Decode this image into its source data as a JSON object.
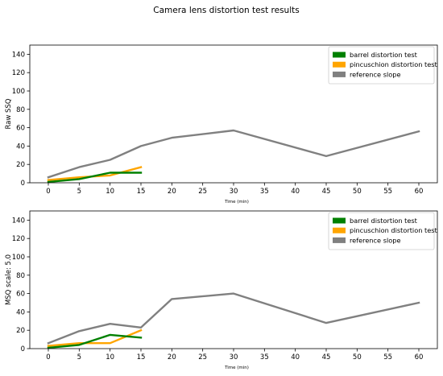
{
  "figure": {
    "title": "Camera lens distortion test results"
  },
  "chart_data": [
    {
      "type": "line",
      "ylabel": "Raw SSQ",
      "xlabel": "Time (min)",
      "xlim": [
        -3,
        63
      ],
      "ylim": [
        0,
        150
      ],
      "xticks": [
        0,
        5,
        10,
        15,
        20,
        25,
        30,
        35,
        40,
        45,
        50,
        55,
        60
      ],
      "yticks": [
        0,
        20,
        40,
        60,
        80,
        100,
        120,
        140
      ],
      "grid": false,
      "legend_position": "top-right",
      "series": [
        {
          "name": "barrel distortion test",
          "color": "#008000",
          "x": [
            0,
            5,
            10,
            15
          ],
          "y": [
            1,
            4,
            11,
            11
          ]
        },
        {
          "name": "pincuschion distortion test",
          "color": "#ffa500",
          "x": [
            0,
            5,
            10,
            15
          ],
          "y": [
            3,
            6,
            8,
            17
          ]
        },
        {
          "name": "reference slope",
          "color": "#808080",
          "x": [
            0,
            5,
            10,
            15,
            20,
            30,
            45,
            60
          ],
          "y": [
            6,
            17,
            25,
            40,
            49,
            57,
            29,
            56
          ]
        }
      ]
    },
    {
      "type": "line",
      "ylabel": "MSQ scale: 5.0",
      "xlabel": "Time (min)",
      "xlim": [
        -3,
        63
      ],
      "ylim": [
        0,
        150
      ],
      "xticks": [
        0,
        5,
        10,
        15,
        20,
        25,
        30,
        35,
        40,
        45,
        50,
        55,
        60
      ],
      "yticks": [
        0,
        20,
        40,
        60,
        80,
        100,
        120,
        140
      ],
      "grid": false,
      "legend_position": "top-right",
      "series": [
        {
          "name": "barrel distortion test",
          "color": "#008000",
          "x": [
            0,
            5,
            10,
            15
          ],
          "y": [
            1,
            4,
            15,
            12
          ]
        },
        {
          "name": "pincuschion distortion test",
          "color": "#ffa500",
          "x": [
            0,
            5,
            10,
            15
          ],
          "y": [
            3,
            6,
            6,
            20
          ]
        },
        {
          "name": "reference slope",
          "color": "#808080",
          "x": [
            0,
            5,
            10,
            15,
            20,
            30,
            45,
            60
          ],
          "y": [
            6,
            19,
            27,
            23,
            54,
            60,
            28,
            50
          ]
        }
      ]
    }
  ]
}
